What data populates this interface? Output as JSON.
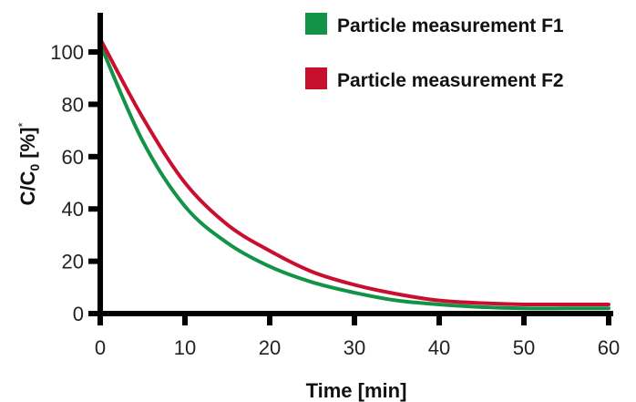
{
  "chart_data": {
    "type": "line",
    "title": "",
    "xlabel": "Time [min]",
    "ylabel_parts": {
      "main": "C/C",
      "subscript": "0",
      "unit": " [%]",
      "superscript": "*"
    },
    "xlim": [
      0,
      60
    ],
    "ylim": [
      0,
      115
    ],
    "x_ticks": [
      0,
      10,
      20,
      30,
      40,
      50,
      60
    ],
    "y_ticks": [
      0,
      20,
      40,
      60,
      80,
      100
    ],
    "grid": false,
    "legend_position": "top-right",
    "series": [
      {
        "name": "Particle measurement F1",
        "color": "#129347",
        "x": [
          0,
          5,
          10,
          15,
          20,
          25,
          30,
          35,
          40,
          45,
          50,
          55,
          60
        ],
        "y": [
          103,
          66,
          41,
          27,
          18,
          12,
          8,
          5,
          3.5,
          2.5,
          2,
          2,
          2
        ]
      },
      {
        "name": "Particle measurement F2",
        "color": "#c8102e",
        "x": [
          0,
          5,
          10,
          15,
          20,
          25,
          30,
          35,
          40,
          45,
          50,
          55,
          60
        ],
        "y": [
          105,
          75,
          50,
          34,
          24,
          16,
          11,
          7.5,
          5,
          4,
          3.5,
          3.5,
          3.5
        ]
      }
    ]
  }
}
